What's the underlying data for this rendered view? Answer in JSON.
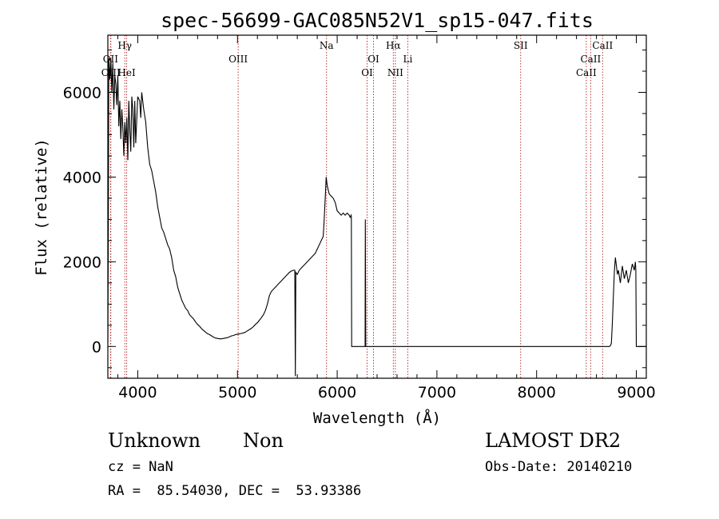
{
  "chart_data": {
    "type": "line",
    "title": "spec-56699-GAC085N52V1_sp15-047.fits",
    "xlabel": "Wavelength (Å)",
    "ylabel": "Flux (relative)",
    "xlim": [
      3700,
      9100
    ],
    "ylim": [
      -750,
      7350
    ],
    "xticks": [
      4000,
      5000,
      6000,
      7000,
      8000,
      9000
    ],
    "yticks": [
      0,
      2000,
      4000,
      6000
    ],
    "grid": false,
    "line_color": "#000000",
    "marker_color": "#b22222",
    "spectral_lines": [
      {
        "label": "OII",
        "wavelength": 3727,
        "row": 2
      },
      {
        "label": "OIII",
        "wavelength": 3730,
        "row": 3
      },
      {
        "label": "HeI",
        "wavelength": 3889,
        "row": 3
      },
      {
        "label": "Hγ",
        "wavelength": 3870,
        "row": 1
      },
      {
        "label": "OIII",
        "wavelength": 5007,
        "row": 2
      },
      {
        "label": "Na",
        "wavelength": 5893,
        "row": 1
      },
      {
        "label": "OI",
        "wavelength": 6300,
        "row": 3
      },
      {
        "label": "OI",
        "wavelength": 6364,
        "row": 2
      },
      {
        "label": "Hα",
        "wavelength": 6563,
        "row": 1
      },
      {
        "label": "NII",
        "wavelength": 6583,
        "row": 3
      },
      {
        "label": "Li",
        "wavelength": 6708,
        "row": 2
      },
      {
        "label": "SII",
        "wavelength": 7840,
        "row": 1
      },
      {
        "label": "CaII",
        "wavelength": 8498,
        "row": 3
      },
      {
        "label": "CaII",
        "wavelength": 8542,
        "row": 2
      },
      {
        "label": "CaII",
        "wavelength": 8662,
        "row": 1
      }
    ],
    "series": [
      {
        "values": [
          [
            3700,
            100
          ],
          [
            3705,
            2800
          ],
          [
            3710,
            6800
          ],
          [
            3720,
            6300
          ],
          [
            3730,
            6800
          ],
          [
            3740,
            6000
          ],
          [
            3750,
            6700
          ],
          [
            3760,
            5600
          ],
          [
            3770,
            6400
          ],
          [
            3780,
            6200
          ],
          [
            3790,
            5700
          ],
          [
            3800,
            6400
          ],
          [
            3810,
            5200
          ],
          [
            3820,
            5800
          ],
          [
            3830,
            4900
          ],
          [
            3840,
            5600
          ],
          [
            3850,
            5200
          ],
          [
            3860,
            4500
          ],
          [
            3870,
            5300
          ],
          [
            3880,
            4800
          ],
          [
            3890,
            5400
          ],
          [
            3900,
            4400
          ],
          [
            3910,
            5800
          ],
          [
            3920,
            5100
          ],
          [
            3930,
            4600
          ],
          [
            3940,
            5900
          ],
          [
            3950,
            5600
          ],
          [
            3960,
            4700
          ],
          [
            3970,
            5800
          ],
          [
            3980,
            4800
          ],
          [
            4000,
            5900
          ],
          [
            4020,
            5800
          ],
          [
            4030,
            5400
          ],
          [
            4040,
            6000
          ],
          [
            4060,
            5600
          ],
          [
            4080,
            5300
          ],
          [
            4100,
            4700
          ],
          [
            4120,
            4300
          ],
          [
            4140,
            4150
          ],
          [
            4160,
            3900
          ],
          [
            4180,
            3650
          ],
          [
            4200,
            3300
          ],
          [
            4220,
            3050
          ],
          [
            4240,
            2800
          ],
          [
            4260,
            2700
          ],
          [
            4280,
            2550
          ],
          [
            4300,
            2400
          ],
          [
            4320,
            2300
          ],
          [
            4340,
            2100
          ],
          [
            4360,
            1800
          ],
          [
            4380,
            1650
          ],
          [
            4400,
            1400
          ],
          [
            4420,
            1250
          ],
          [
            4440,
            1100
          ],
          [
            4460,
            1000
          ],
          [
            4480,
            900
          ],
          [
            4500,
            850
          ],
          [
            4520,
            750
          ],
          [
            4540,
            700
          ],
          [
            4560,
            650
          ],
          [
            4580,
            580
          ],
          [
            4600,
            520
          ],
          [
            4620,
            480
          ],
          [
            4640,
            420
          ],
          [
            4660,
            380
          ],
          [
            4680,
            340
          ],
          [
            4700,
            300
          ],
          [
            4720,
            280
          ],
          [
            4740,
            250
          ],
          [
            4760,
            220
          ],
          [
            4780,
            200
          ],
          [
            4800,
            190
          ],
          [
            4820,
            180
          ],
          [
            4840,
            180
          ],
          [
            4860,
            190
          ],
          [
            4880,
            200
          ],
          [
            4900,
            210
          ],
          [
            4920,
            230
          ],
          [
            4940,
            250
          ],
          [
            4960,
            260
          ],
          [
            4980,
            280
          ],
          [
            5000,
            290
          ],
          [
            5020,
            300
          ],
          [
            5040,
            310
          ],
          [
            5060,
            320
          ],
          [
            5080,
            340
          ],
          [
            5100,
            370
          ],
          [
            5120,
            400
          ],
          [
            5140,
            430
          ],
          [
            5160,
            470
          ],
          [
            5180,
            520
          ],
          [
            5200,
            560
          ],
          [
            5220,
            620
          ],
          [
            5240,
            680
          ],
          [
            5260,
            750
          ],
          [
            5280,
            850
          ],
          [
            5300,
            1000
          ],
          [
            5320,
            1200
          ],
          [
            5340,
            1300
          ],
          [
            5360,
            1350
          ],
          [
            5380,
            1400
          ],
          [
            5400,
            1450
          ],
          [
            5420,
            1500
          ],
          [
            5440,
            1550
          ],
          [
            5460,
            1600
          ],
          [
            5480,
            1650
          ],
          [
            5500,
            1700
          ],
          [
            5520,
            1750
          ],
          [
            5540,
            1780
          ],
          [
            5560,
            1800
          ],
          [
            5575,
            1800
          ],
          [
            5580,
            -700
          ],
          [
            5585,
            1750
          ],
          [
            5600,
            1700
          ],
          [
            5620,
            1800
          ],
          [
            5640,
            1850
          ],
          [
            5660,
            1900
          ],
          [
            5680,
            1950
          ],
          [
            5700,
            2000
          ],
          [
            5720,
            2050
          ],
          [
            5740,
            2100
          ],
          [
            5760,
            2150
          ],
          [
            5780,
            2200
          ],
          [
            5800,
            2300
          ],
          [
            5820,
            2400
          ],
          [
            5840,
            2500
          ],
          [
            5860,
            2600
          ],
          [
            5870,
            3000
          ],
          [
            5880,
            3500
          ],
          [
            5890,
            4000
          ],
          [
            5900,
            3800
          ],
          [
            5910,
            3700
          ],
          [
            5920,
            3600
          ],
          [
            5940,
            3550
          ],
          [
            5960,
            3500
          ],
          [
            5980,
            3400
          ],
          [
            6000,
            3200
          ],
          [
            6020,
            3150
          ],
          [
            6040,
            3100
          ],
          [
            6060,
            3150
          ],
          [
            6080,
            3100
          ],
          [
            6100,
            3150
          ],
          [
            6120,
            3100
          ],
          [
            6130,
            3050
          ],
          [
            6140,
            3100
          ],
          [
            6142,
            3050
          ],
          [
            6145,
            0
          ],
          [
            6280,
            0
          ],
          [
            6282,
            3000
          ],
          [
            6286,
            0
          ],
          [
            6300,
            0
          ],
          [
            6500,
            0
          ],
          [
            6800,
            0
          ],
          [
            7000,
            0
          ],
          [
            7200,
            0
          ],
          [
            7500,
            0
          ],
          [
            7800,
            0
          ],
          [
            8100,
            0
          ],
          [
            8400,
            0
          ],
          [
            8600,
            0
          ],
          [
            8730,
            0
          ],
          [
            8740,
            20
          ],
          [
            8750,
            80
          ],
          [
            8760,
            600
          ],
          [
            8770,
            1200
          ],
          [
            8780,
            1800
          ],
          [
            8790,
            2100
          ],
          [
            8800,
            1900
          ],
          [
            8810,
            1700
          ],
          [
            8820,
            1800
          ],
          [
            8840,
            1500
          ],
          [
            8860,
            1900
          ],
          [
            8880,
            1600
          ],
          [
            8900,
            1800
          ],
          [
            8920,
            1500
          ],
          [
            8940,
            1700
          ],
          [
            8960,
            1950
          ],
          [
            8980,
            1800
          ],
          [
            8990,
            2000
          ],
          [
            8995,
            1800
          ],
          [
            9000,
            0
          ],
          [
            9100,
            0
          ]
        ]
      }
    ]
  },
  "info": {
    "object_class": "Unknown",
    "object_subclass": "Non",
    "redshift": "cz = NaN",
    "coordinates": "RA =  85.54030, DEC =  53.93386",
    "survey": "LAMOST DR2",
    "obs_date": "Obs-Date: 20140210"
  }
}
